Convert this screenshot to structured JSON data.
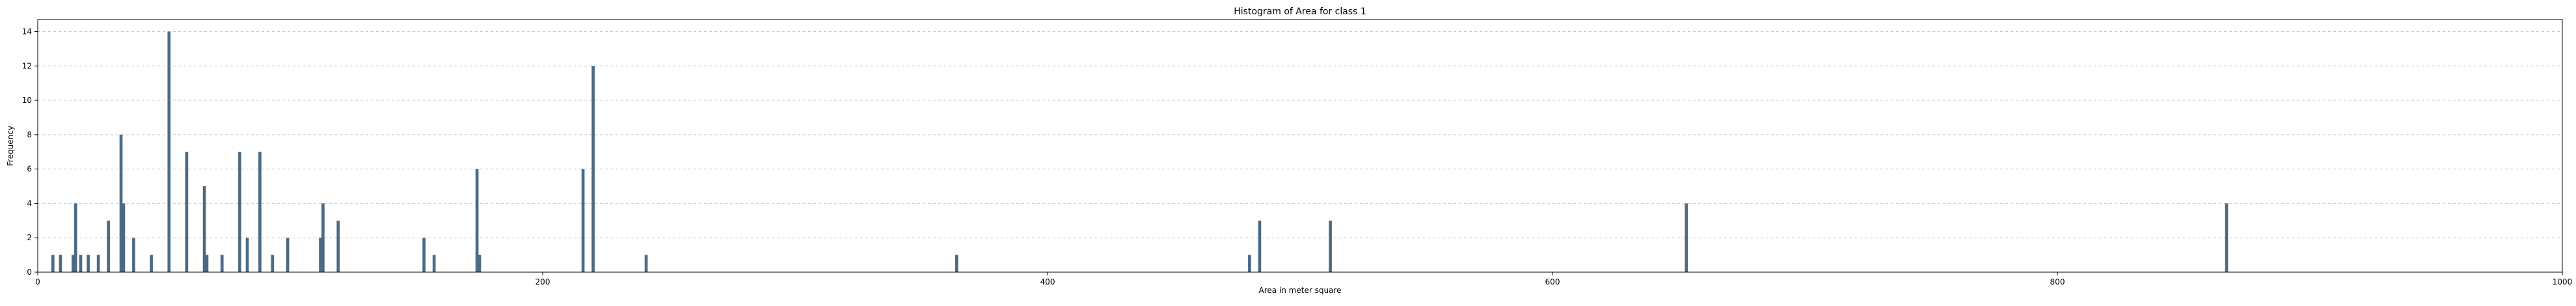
{
  "chart_data": {
    "type": "bar",
    "title": "Histogram of Area for class 1",
    "xlabel": "Area in meter square",
    "ylabel": "Frequency",
    "xlim": [
      0,
      1000
    ],
    "ylim": [
      0,
      14.7
    ],
    "xticks": [
      0,
      200,
      400,
      600,
      800,
      1000
    ],
    "yticks": [
      0,
      2,
      4,
      6,
      8,
      10,
      12,
      14
    ],
    "grid": "horizontal-dashed",
    "bar_color": "#4b6a84",
    "bin_width": 1.2,
    "bars": [
      {
        "x": 6,
        "count": 1
      },
      {
        "x": 9,
        "count": 1
      },
      {
        "x": 14,
        "count": 1
      },
      {
        "x": 15,
        "count": 4
      },
      {
        "x": 17,
        "count": 1
      },
      {
        "x": 20,
        "count": 1
      },
      {
        "x": 24,
        "count": 1
      },
      {
        "x": 28,
        "count": 3
      },
      {
        "x": 33,
        "count": 8
      },
      {
        "x": 34,
        "count": 4
      },
      {
        "x": 38,
        "count": 2
      },
      {
        "x": 45,
        "count": 1
      },
      {
        "x": 52,
        "count": 14
      },
      {
        "x": 59,
        "count": 7
      },
      {
        "x": 66,
        "count": 5
      },
      {
        "x": 67,
        "count": 1
      },
      {
        "x": 73,
        "count": 1
      },
      {
        "x": 80,
        "count": 7
      },
      {
        "x": 83,
        "count": 2
      },
      {
        "x": 88,
        "count": 7
      },
      {
        "x": 93,
        "count": 1
      },
      {
        "x": 99,
        "count": 2
      },
      {
        "x": 112,
        "count": 2
      },
      {
        "x": 113,
        "count": 4
      },
      {
        "x": 119,
        "count": 3
      },
      {
        "x": 153,
        "count": 2
      },
      {
        "x": 157,
        "count": 1
      },
      {
        "x": 174,
        "count": 6
      },
      {
        "x": 175,
        "count": 1
      },
      {
        "x": 216,
        "count": 6
      },
      {
        "x": 220,
        "count": 12
      },
      {
        "x": 241,
        "count": 1
      },
      {
        "x": 364,
        "count": 1
      },
      {
        "x": 480,
        "count": 1
      },
      {
        "x": 484,
        "count": 3
      },
      {
        "x": 512,
        "count": 3
      },
      {
        "x": 653,
        "count": 4
      },
      {
        "x": 867,
        "count": 4
      }
    ]
  }
}
